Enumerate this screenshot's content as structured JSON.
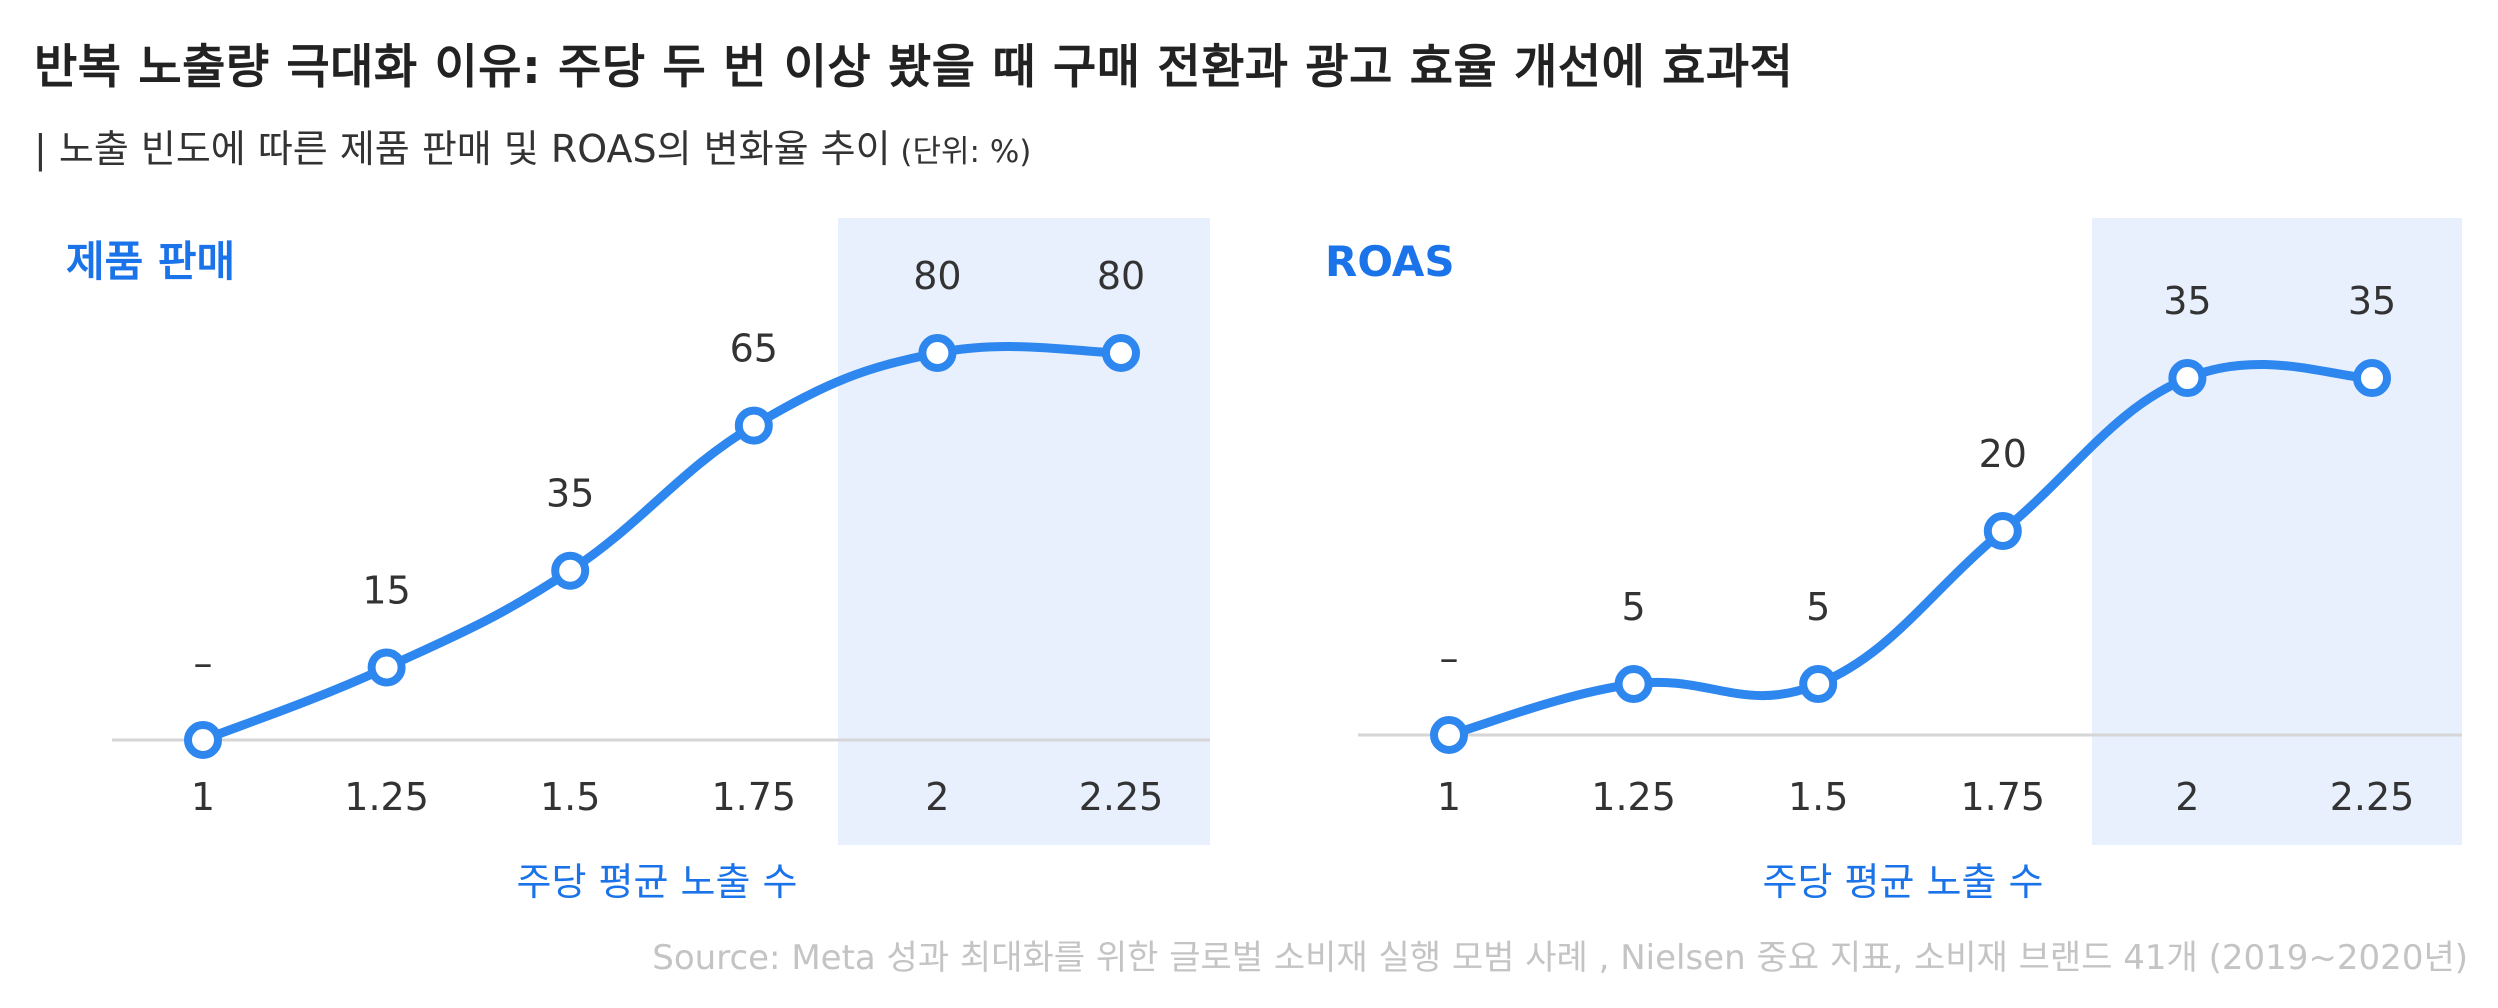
{
  "header": {
    "title": "반복 노출량 극대화 이유: 주당 두 번 이상 봤을 때 구매 전환과 광고 효율 개선에 효과적",
    "subtitle": "| 노출 빈도에 따른 제품 판매 및 ROAS의 변화율 추이",
    "unit": " (단위: %)"
  },
  "colors": {
    "line": "#2e86ef",
    "accent_text": "#1a73e8",
    "highlight": "#e8f0fd",
    "baseline": "#d6d6d6"
  },
  "chart_data": [
    {
      "type": "line",
      "title": "제품 판매",
      "xlabel": "주당 평균 노출 수",
      "categories": [
        "1",
        "1.25",
        "1.5",
        "1.75",
        "2",
        "2.25"
      ],
      "values": [
        0,
        15,
        35,
        65,
        80,
        80
      ],
      "labels": [
        "–",
        "15",
        "35",
        "65",
        "80",
        "80"
      ],
      "highlight_from_index": 4,
      "ylim": [
        0,
        100
      ]
    },
    {
      "type": "line",
      "title": "ROAS",
      "xlabel": "주당 평균 노출 수",
      "categories": [
        "1",
        "1.25",
        "1.5",
        "1.75",
        "2",
        "2.25"
      ],
      "values": [
        0,
        5,
        5,
        20,
        35,
        35
      ],
      "labels": [
        "–",
        "5",
        "5",
        "20",
        "35",
        "35"
      ],
      "highlight_from_index": 4,
      "ylim": [
        0,
        44
      ]
    }
  ],
  "source": "Source: Meta 성과 최대화를 위한 글로벌 소비재 실행 모범 사례 , Nielsen 중요 지표, 소비재 브랜드 41개 (2019~2020년)"
}
